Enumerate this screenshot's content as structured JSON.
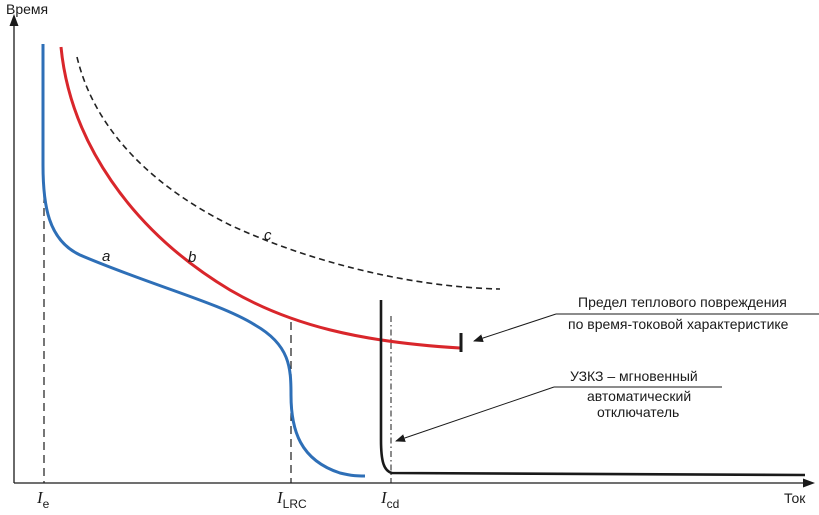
{
  "axes": {
    "y_label": "Время",
    "x_label": "Ток"
  },
  "ticks": {
    "ie": {
      "main": "I",
      "sub": "e"
    },
    "ilrc": {
      "main": "I",
      "sub": "LRC"
    },
    "icd": {
      "main": "I",
      "sub": "cd"
    }
  },
  "curves": {
    "a": "a",
    "b": "b",
    "c": "c"
  },
  "annotations": {
    "thermal_line1": "Предел теплового повреждения",
    "thermal_line2": "по время-токовой характеристике",
    "uzkz_line1": "УЗКЗ – мгновенный",
    "uzkz_line2": "автоматический",
    "uzkz_line3": "отключатель"
  },
  "colors": {
    "curve_a": "#2e6fb7",
    "curve_b": "#d9262b",
    "curve_c": "#222222",
    "fuse": "#1a1a1a",
    "axis": "#1a1a1a"
  }
}
